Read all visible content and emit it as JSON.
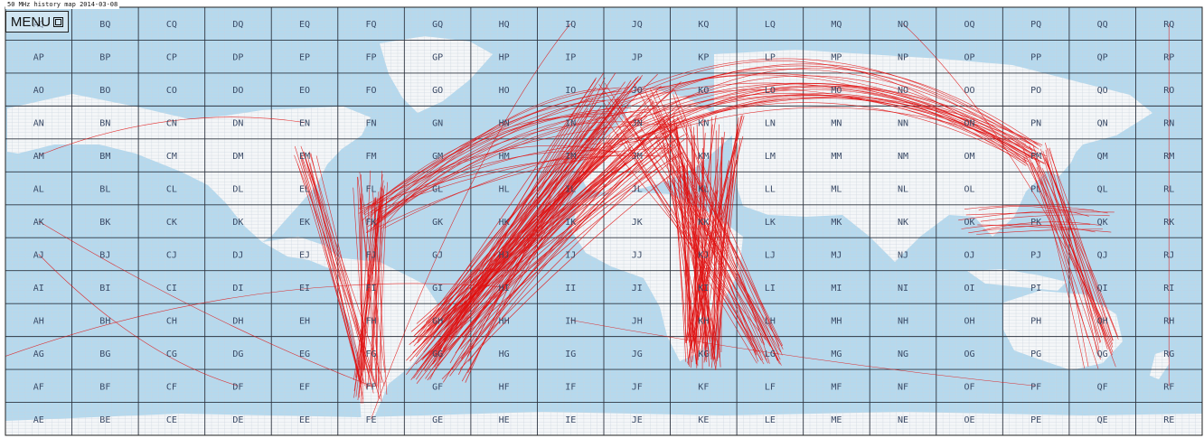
{
  "title": "50 MHz history map 2014-03-08",
  "menu": {
    "label": "MENU",
    "icon": "window-box-icon"
  },
  "colors": {
    "ocean": "#b5d9ee",
    "land": "#f4f6f8",
    "grid_major": "#2f3540",
    "grid_minor": "#c9d3dc",
    "path": "#e01010",
    "label": "#3a4a66"
  },
  "grid": {
    "cols": [
      "A",
      "B",
      "C",
      "D",
      "E",
      "F",
      "G",
      "H",
      "I",
      "J",
      "K",
      "L",
      "M",
      "N",
      "O",
      "P",
      "Q",
      "R"
    ],
    "rows": [
      "Q",
      "P",
      "O",
      "N",
      "M",
      "L",
      "K",
      "J",
      "I",
      "H",
      "G",
      "F",
      "E"
    ]
  },
  "hub_squares": [
    "JN",
    "KM",
    "GG",
    "JM",
    "KG",
    "QK",
    "LG",
    "FF"
  ]
}
